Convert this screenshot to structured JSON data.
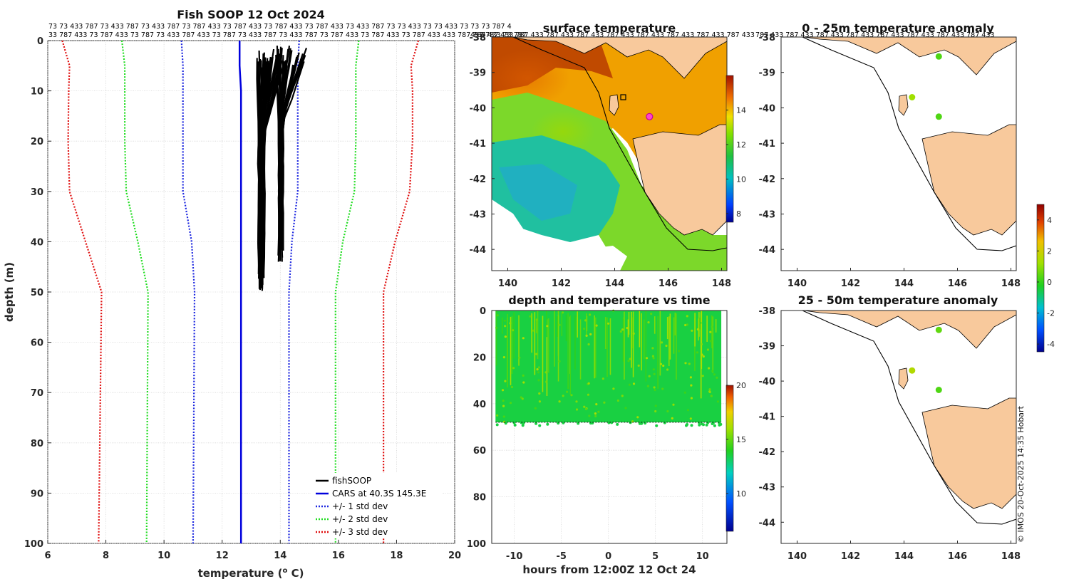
{
  "figure_credit": "© IMOS 20-Oct-2025 14:35 Hobart",
  "colors": {
    "land": "#f8c99c",
    "coast": "#000000",
    "fish": "#000000",
    "cars": "#0000dd",
    "std1": "#1e28e0",
    "std2": "#22dd22",
    "std3": "#e01010",
    "marker_pink": "#ff44cc"
  },
  "chart_data": [
    {
      "id": "profile",
      "type": "line",
      "title": "Fish SOOP 12 Oct 2024",
      "xlabel": "temperature (",
      "xlabel_sup": "o",
      "xlabel_tail": " C)",
      "ylabel": "depth (m)",
      "xlim": [
        6,
        20
      ],
      "ylim": [
        0,
        100
      ],
      "xticks": [
        "6",
        "8",
        "10",
        "12",
        "14",
        "16",
        "18",
        "20"
      ],
      "yticks": [
        "0",
        "10",
        "20",
        "30",
        "40",
        "50",
        "60",
        "70",
        "80",
        "90",
        "100"
      ],
      "id_rows": [
        "73 73 433 787 73 433 787 73 433 787 73 787 433 73 787 433 73 787 433 73 787 433 73 433 787 73 73 433 73 73 433 73 73 73 787 4",
        "33 787 433 73 787 433 73 787 73 433 787 433 73 787 73 433 787 73 433 787 73 787 433 73 787 433 73 787 433 433 787 787 433 73 787"
      ],
      "depth_levels": [
        0,
        5,
        10,
        20,
        30,
        40,
        50,
        100
      ],
      "cars_mean": [
        12.6,
        12.6,
        12.65,
        12.65,
        12.65,
        12.65,
        12.65,
        12.65
      ],
      "series": [
        {
          "name": "+/- 3 std dev lower",
          "values": [
            6.5,
            6.75,
            6.72,
            6.7,
            6.75,
            7.3,
            7.85,
            7.75
          ]
        },
        {
          "name": "+/- 2 std dev lower",
          "values": [
            8.55,
            8.65,
            8.65,
            8.65,
            8.7,
            9.1,
            9.45,
            9.4
          ]
        },
        {
          "name": "+/- 1 std dev lower",
          "values": [
            10.6,
            10.65,
            10.65,
            10.65,
            10.65,
            10.95,
            11.05,
            11.0
          ]
        },
        {
          "name": "+/- 1 std dev upper",
          "values": [
            14.65,
            14.6,
            14.6,
            14.6,
            14.6,
            14.4,
            14.3,
            14.3
          ]
        },
        {
          "name": "+/- 2 std dev upper",
          "values": [
            16.7,
            16.6,
            16.6,
            16.6,
            16.55,
            16.15,
            15.9,
            15.9
          ]
        },
        {
          "name": "+/- 3 std dev upper",
          "values": [
            18.75,
            18.5,
            18.55,
            18.55,
            18.45,
            17.95,
            17.55,
            17.55
          ]
        }
      ],
      "fish_bands": [
        {
          "depth_top": 1.5,
          "depth_bottom": 50,
          "temp_top_min": 13.2,
          "temp_top_max": 14.1,
          "temp_bottom_min": 13.25,
          "temp_bottom_max": 13.45
        },
        {
          "depth_top": 1,
          "depth_bottom": 44,
          "temp_top_min": 13.85,
          "temp_top_max": 14.9,
          "temp_bottom_min": 13.95,
          "temp_bottom_max": 14.1
        }
      ],
      "legend": [
        "fishSOOP",
        "CARS at 40.3S 145.3E",
        "+/- 1 std dev",
        "+/- 2 std dev",
        "+/- 3 std dev"
      ]
    },
    {
      "id": "surface_temperature",
      "type": "heatmap",
      "title": "surface temperature",
      "xticks": [
        "140",
        "142",
        "144",
        "146",
        "148"
      ],
      "yticks": [
        "-38",
        "-39",
        "-40",
        "-41",
        "-42",
        "-43",
        "-44"
      ],
      "xlim": [
        139.4,
        148.2
      ],
      "ylim": [
        -44.6,
        -38
      ],
      "colorbar_ticks": [
        "8",
        "10",
        "12",
        "14"
      ],
      "colorbar_range": [
        7.5,
        16
      ],
      "id_row": "433 787 433 787 433 787 433 787 433 787 433 787 433 787 433 787 433 787 433",
      "vessel_position": [
        145.3,
        -40.25
      ]
    },
    {
      "id": "depth_time",
      "type": "scatter",
      "title": "depth and temperature vs time",
      "xlabel": "hours from 12:00Z 12 Oct 24",
      "xticks": [
        "-10",
        "-5",
        "0",
        "5",
        "10"
      ],
      "yticks": [
        "0",
        "20",
        "40",
        "60",
        "80",
        "100"
      ],
      "xlim": [
        -12.4,
        12.6
      ],
      "ylim": [
        0,
        100
      ],
      "colorbar_ticks": [
        "10",
        "15",
        "20"
      ],
      "colorbar_range": [
        6.5,
        20
      ],
      "sample_time_range": [
        -12,
        12
      ],
      "sample_depth_range": [
        0,
        48
      ],
      "dominant_temperature": 13.5
    },
    {
      "id": "anom_0_25",
      "type": "map",
      "title": "0 - 25m temperature anomaly",
      "xticks": [
        "140",
        "142",
        "144",
        "146",
        "148"
      ],
      "yticks": [
        "-38",
        "-39",
        "-40",
        "-41",
        "-42",
        "-43",
        "-44"
      ],
      "xlim": [
        139.4,
        148.2
      ],
      "ylim": [
        -44.6,
        -38
      ],
      "id_row": "787 433 787 433 787 433 787 433 787 433 787 433 787 433 787 433",
      "points": [
        {
          "lon": 145.3,
          "lat": -38.55,
          "anomaly": 0.3
        },
        {
          "lon": 144.3,
          "lat": -39.7,
          "anomaly": 1.2
        },
        {
          "lon": 145.3,
          "lat": -40.25,
          "anomaly": 0.3
        }
      ]
    },
    {
      "id": "anom_25_50",
      "type": "map",
      "title": "25 - 50m temperature anomaly",
      "xticks": [
        "140",
        "142",
        "144",
        "146",
        "148"
      ],
      "yticks": [
        "-38",
        "-39",
        "-40",
        "-41",
        "-42",
        "-43",
        "-44"
      ],
      "xlim": [
        139.4,
        148.2
      ],
      "ylim": [
        -44.6,
        -38
      ],
      "points": [
        {
          "lon": 145.3,
          "lat": -38.55,
          "anomaly": 0.5
        },
        {
          "lon": 144.3,
          "lat": -39.7,
          "anomaly": 1.5
        },
        {
          "lon": 145.3,
          "lat": -40.25,
          "anomaly": 0.3
        }
      ],
      "colorbar_ticks": [
        "-4",
        "-2",
        "0",
        "2",
        "4"
      ],
      "colorbar_range": [
        -4.5,
        5
      ]
    }
  ]
}
